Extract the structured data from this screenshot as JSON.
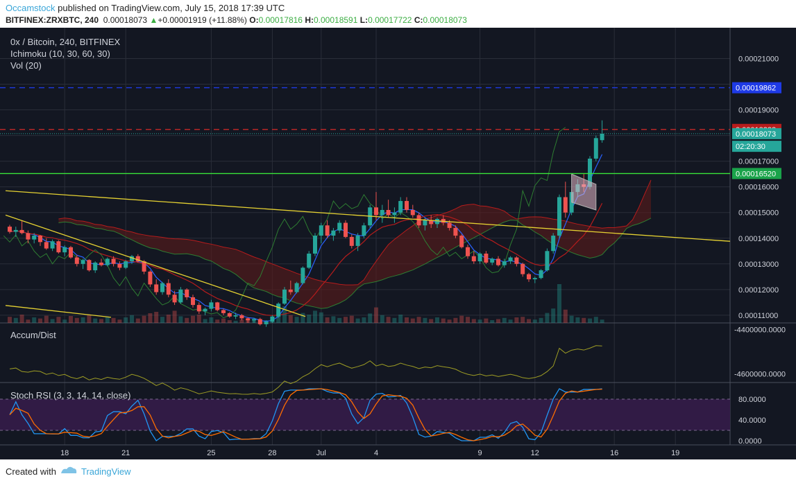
{
  "header": {
    "username": "Occamstock",
    "published_text": " published on TradingView.com, July 15, 2018 17:39 UTC",
    "symbol_line": "BITFINEX:ZRXBTC, 240",
    "last_price": "0.00018073",
    "change_arrow": "▲",
    "change": "+0.00001919 (+11.88%)",
    "o_label": "O:",
    "o_value": "0.00017816",
    "h_label": "H:",
    "h_value": "0.00018591",
    "l_label": "L:",
    "l_value": "0.00017722",
    "c_label": "C:",
    "c_value": "0.00018073"
  },
  "footer": {
    "created_with": "Created with",
    "brand": "TradingView"
  },
  "colors": {
    "background": "#131722",
    "grid": "#2a2e39",
    "up": "#26a69a",
    "down": "#ef5350",
    "tenkan": "#2962ff",
    "kijun": "#b71c1c",
    "chikou": "#2e7d32",
    "cloud_bear": "#5b1a1a",
    "cloud_bull": "#1b3a1b",
    "trendline": "#e6d232",
    "accum": "#9e9d24",
    "stoch_k": "#2196f3",
    "stoch_d": "#ff6d00",
    "stoch_band": "#311b45",
    "line_green": "#39e639",
    "line_blue": "#1e3ae6",
    "line_red": "#c62828"
  },
  "chart_data": [
    {
      "type": "candlestick",
      "title": "0x / Bitcoin, 240, BITFINEX",
      "indicators": [
        "Ichimoku (10, 30, 60, 30)",
        "Vol (20)"
      ],
      "x_ticks": [
        "18",
        "21",
        "25",
        "28",
        "Jul",
        "4",
        "9",
        "12",
        "16",
        "19"
      ],
      "y_ticks": [
        "0.00021000",
        "0.00019000",
        "0.00017000",
        "0.00016000",
        "0.00015000",
        "0.00014000",
        "0.00013000",
        "0.00012000",
        "0.00011000"
      ],
      "ylim": [
        0.000107,
        0.000222
      ],
      "price_labels": [
        {
          "text": "0.00019862",
          "value": 0.00019862,
          "color": "#1e3ae6"
        },
        {
          "text": "0.00018238",
          "value": 0.00018238,
          "color": "#b71c1c"
        },
        {
          "text": "0.00018073",
          "value": 0.00018073,
          "color": "#26a69a"
        },
        {
          "text": "02:20:30",
          "value": 0.0001758,
          "color": "#26a69a"
        },
        {
          "text": "0.00016520",
          "value": 0.0001652,
          "color": "#1aa34a"
        }
      ],
      "horizontal_lines": [
        {
          "value": 0.00019862,
          "style": "dashed",
          "color": "#1e3ae6"
        },
        {
          "value": 0.00018238,
          "style": "dashed",
          "color": "#c62828"
        },
        {
          "value": 0.0001652,
          "style": "solid",
          "color": "#39e639"
        }
      ],
      "candles": [
        [
          0.0001445,
          0.0001452,
          0.0001418,
          0.0001425
        ],
        [
          0.0001425,
          0.0001445,
          0.0001405,
          0.0001432
        ],
        [
          0.0001432,
          0.000147,
          0.0001415,
          0.000142
        ],
        [
          0.000142,
          0.000143,
          0.000138,
          0.0001395
        ],
        [
          0.0001395,
          0.000142,
          0.000138,
          0.000141
        ],
        [
          0.000141,
          0.0001412,
          0.000137,
          0.0001385
        ],
        [
          0.0001385,
          0.00014,
          0.0001355,
          0.000136
        ],
        [
          0.000136,
          0.0001395,
          0.000135,
          0.0001388
        ],
        [
          0.0001388,
          0.0001392,
          0.000134,
          0.0001345
        ],
        [
          0.0001345,
          0.0001372,
          0.000133,
          0.0001365
        ],
        [
          0.0001365,
          0.000137,
          0.000132,
          0.0001325
        ],
        [
          0.0001325,
          0.0001335,
          0.000129,
          0.00013
        ],
        [
          0.00013,
          0.000132,
          0.000128,
          0.0001315
        ],
        [
          0.0001315,
          0.0001318,
          0.000127,
          0.0001275
        ],
        [
          0.0001275,
          0.000131,
          0.0001265,
          0.0001305
        ],
        [
          0.0001305,
          0.000132,
          0.000129,
          0.0001295
        ],
        [
          0.0001295,
          0.0001325,
          0.000129,
          0.000132
        ],
        [
          0.000132,
          0.000133,
          0.000129,
          0.00013
        ],
        [
          0.00013,
          0.000131,
          0.0001275,
          0.0001285
        ],
        [
          0.0001285,
          0.0001315,
          0.000128,
          0.000131
        ],
        [
          0.000131,
          0.0001335,
          0.00013,
          0.000133
        ],
        [
          0.000133,
          0.0001338,
          0.0001305,
          0.000131
        ],
        [
          0.000131,
          0.0001315,
          0.000126,
          0.000127
        ],
        [
          0.000127,
          0.0001275,
          0.000121,
          0.000122
        ],
        [
          0.000122,
          0.000124,
          0.000118,
          0.000119
        ],
        [
          0.000119,
          0.000123,
          0.000118,
          0.0001225
        ],
        [
          0.0001225,
          0.000124,
          0.000117,
          0.000118
        ],
        [
          0.000118,
          0.0001195,
          0.000114,
          0.000115
        ],
        [
          0.000115,
          0.000121,
          0.0001145,
          0.00012
        ],
        [
          0.00012,
          0.0001205,
          0.000116,
          0.000117
        ],
        [
          0.000117,
          0.000118,
          0.000113,
          0.000114
        ],
        [
          0.000114,
          0.000115,
          0.0001105,
          0.0001115
        ],
        [
          0.0001115,
          0.000113,
          0.00011,
          0.0001125
        ],
        [
          0.0001125,
          0.000116,
          0.0001115,
          0.000115
        ],
        [
          0.000115,
          0.0001152,
          0.0001115,
          0.000112
        ],
        [
          0.000112,
          0.0001125,
          0.00011,
          0.0001108
        ],
        [
          0.0001108,
          0.0001112,
          0.000109,
          0.0001095
        ],
        [
          0.0001095,
          0.000111,
          0.0001085,
          0.00011
        ],
        [
          0.00011,
          0.0001105,
          0.000108,
          0.0001088
        ],
        [
          0.0001088,
          0.0001092,
          0.000107,
          0.000108
        ],
        [
          0.000108,
          0.000109,
          0.000107,
          0.0001085
        ],
        [
          0.0001085,
          0.000109,
          0.000106,
          0.0001065
        ],
        [
          0.0001065,
          0.000108,
          0.0001055,
          0.0001075
        ],
        [
          0.0001075,
          0.00011,
          0.000107,
          0.0001095
        ],
        [
          0.0001095,
          0.000115,
          0.000109,
          0.0001145
        ],
        [
          0.0001145,
          0.000121,
          0.000114,
          0.00012
        ],
        [
          0.00012,
          0.0001235,
          0.000118,
          0.000119
        ],
        [
          0.000119,
          0.000123,
          0.0001185,
          0.0001225
        ],
        [
          0.0001225,
          0.000129,
          0.000122,
          0.0001285
        ],
        [
          0.0001285,
          0.000135,
          0.000128,
          0.000134
        ],
        [
          0.000134,
          0.000142,
          0.000133,
          0.000141
        ],
        [
          0.000141,
          0.000146,
          0.000138,
          0.000145
        ],
        [
          0.000145,
          0.000147,
          0.00014,
          0.000141
        ],
        [
          0.000141,
          0.000144,
          0.000139,
          0.000143
        ],
        [
          0.000143,
          0.000147,
          0.000142,
          0.000146
        ],
        [
          0.000146,
          0.000147,
          0.00014,
          0.0001405
        ],
        [
          0.0001405,
          0.0001415,
          0.000136,
          0.000137
        ],
        [
          0.000137,
          0.000142,
          0.000135,
          0.000141
        ],
        [
          0.000141,
          0.000146,
          0.00014,
          0.000145
        ],
        [
          0.000145,
          0.000153,
          0.000144,
          0.000152
        ],
        [
          0.000152,
          0.000158,
          0.000147,
          0.000149
        ],
        [
          0.000149,
          0.000153,
          0.000146,
          0.000151
        ],
        [
          0.000151,
          0.000155,
          0.000148,
          0.000149
        ],
        [
          0.000149,
          0.000152,
          0.000146,
          0.00015
        ],
        [
          0.00015,
          0.000156,
          0.000149,
          0.0001545
        ],
        [
          0.0001545,
          0.000156,
          0.00015,
          0.000151
        ],
        [
          0.000151,
          0.000153,
          0.000148,
          0.000149
        ],
        [
          0.000149,
          0.00015,
          0.000144,
          0.000145
        ],
        [
          0.000145,
          0.000148,
          0.000143,
          0.000147
        ],
        [
          0.000147,
          0.000149,
          0.000144,
          0.0001455
        ],
        [
          0.0001455,
          0.000148,
          0.000144,
          0.0001475
        ],
        [
          0.0001475,
          0.000149,
          0.000145,
          0.000146
        ],
        [
          0.000146,
          0.000147,
          0.000143,
          0.000144
        ],
        [
          0.000144,
          0.000145,
          0.00014,
          0.000141
        ],
        [
          0.000141,
          0.0001415,
          0.000136,
          0.0001365
        ],
        [
          0.0001365,
          0.0001375,
          0.000132,
          0.000133
        ],
        [
          0.000133,
          0.000135,
          0.00013,
          0.000131
        ],
        [
          0.000131,
          0.0001345,
          0.00013,
          0.000134
        ],
        [
          0.000134,
          0.000135,
          0.00013,
          0.0001305
        ],
        [
          0.0001305,
          0.0001325,
          0.0001295,
          0.000132
        ],
        [
          0.000132,
          0.000133,
          0.000129,
          0.0001295
        ],
        [
          0.0001295,
          0.000132,
          0.0001285,
          0.000131
        ],
        [
          0.000131,
          0.000133,
          0.00013,
          0.0001325
        ],
        [
          0.0001325,
          0.000133,
          0.000129,
          0.00013
        ],
        [
          0.00013,
          0.0001305,
          0.000125,
          0.000126
        ],
        [
          0.000126,
          0.0001265,
          0.000123,
          0.000124
        ],
        [
          0.000124,
          0.000125,
          0.0001225,
          0.0001245
        ],
        [
          0.0001245,
          0.000128,
          0.000124,
          0.0001275
        ],
        [
          0.0001275,
          0.000136,
          0.000127,
          0.000135
        ],
        [
          0.000135,
          0.000142,
          0.000134,
          0.000141
        ],
        [
          0.000141,
          0.000157,
          0.00014,
          0.000156
        ],
        [
          0.000156,
          0.000162,
          0.000148,
          0.00015
        ],
        [
          0.00015,
          0.000159,
          0.000149,
          0.000158
        ],
        [
          0.000158,
          0.000163,
          0.000156,
          0.000161
        ],
        [
          0.000161,
          0.000165,
          0.000158,
          0.00016
        ],
        [
          0.00016,
          0.000172,
          0.000159,
          0.000171
        ],
        [
          0.000171,
          0.00018,
          0.00017,
          0.000179
        ],
        [
          0.0001782,
          0.0001859,
          0.0001772,
          0.0001807
        ]
      ],
      "volume": [
        22,
        18,
        30,
        12,
        20,
        16,
        26,
        14,
        22,
        12,
        25,
        18,
        20,
        30,
        16,
        14,
        22,
        18,
        12,
        20,
        28,
        16,
        26,
        35,
        40,
        22,
        30,
        44,
        24,
        18,
        26,
        30,
        14,
        20,
        12,
        16,
        10,
        8,
        12,
        9,
        11,
        7,
        10,
        14,
        40,
        60,
        28,
        22,
        36,
        30,
        44,
        38,
        20,
        24,
        18,
        22,
        26,
        16,
        20,
        34,
        56,
        28,
        22,
        18,
        30,
        20,
        16,
        22,
        18,
        14,
        20,
        16,
        12,
        18,
        26,
        22,
        14,
        12,
        16,
        10,
        14,
        18,
        12,
        20,
        22,
        14,
        12,
        18,
        36,
        52,
        140,
        48,
        26,
        20,
        18,
        16,
        22,
        12
      ]
    },
    {
      "type": "line",
      "title": "Accum/Dist",
      "y_ticks": [
        "-4400000.0000",
        "-4600000.0000"
      ],
      "ylim": [
        -4640000,
        -4370000
      ]
    },
    {
      "type": "line",
      "title": "Stoch RSI (3, 3, 14, 14, close)",
      "y_ticks": [
        "80.0000",
        "40.0000",
        "0.0000"
      ],
      "ylim": [
        -8,
        112
      ],
      "band": [
        20,
        80
      ],
      "series": []
    }
  ]
}
